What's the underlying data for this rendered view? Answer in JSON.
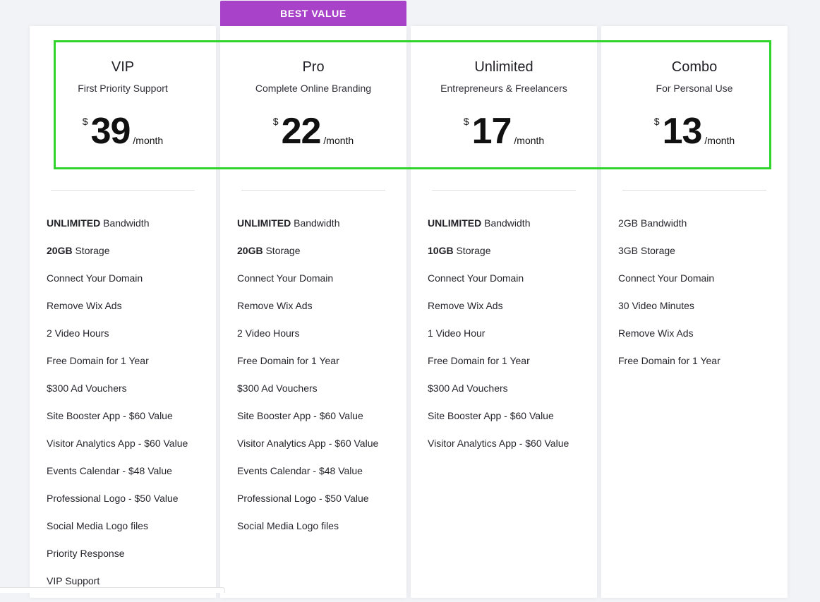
{
  "badge": {
    "label": "BEST VALUE",
    "color": "#a843c9"
  },
  "highlight_color": "#2fd52a",
  "plans": [
    {
      "name": "VIP",
      "tagline": "First Priority Support",
      "currency": "$",
      "price": "39",
      "period": "/month",
      "features": [
        {
          "bold": "UNLIMITED",
          "text": " Bandwidth"
        },
        {
          "bold": "20GB",
          "text": " Storage"
        },
        {
          "bold": "",
          "text": "Connect Your Domain"
        },
        {
          "bold": "",
          "text": "Remove Wix Ads"
        },
        {
          "bold": "",
          "text": "2 Video Hours"
        },
        {
          "bold": "",
          "text": "Free Domain for 1 Year"
        },
        {
          "bold": "",
          "text": "$300 Ad Vouchers"
        },
        {
          "bold": "",
          "text": "Site Booster App - $60 Value"
        },
        {
          "bold": "",
          "text": "Visitor Analytics App - $60 Value"
        },
        {
          "bold": "",
          "text": "Events Calendar - $48 Value"
        },
        {
          "bold": "",
          "text": "Professional Logo - $50 Value"
        },
        {
          "bold": "",
          "text": "Social Media Logo files"
        },
        {
          "bold": "",
          "text": "Priority Response"
        },
        {
          "bold": "",
          "text": "VIP Support"
        }
      ]
    },
    {
      "name": "Pro",
      "tagline": "Complete Online Branding",
      "currency": "$",
      "price": "22",
      "period": "/month",
      "features": [
        {
          "bold": "UNLIMITED",
          "text": " Bandwidth"
        },
        {
          "bold": "20GB",
          "text": " Storage"
        },
        {
          "bold": "",
          "text": "Connect Your Domain"
        },
        {
          "bold": "",
          "text": "Remove Wix Ads"
        },
        {
          "bold": "",
          "text": "2 Video Hours"
        },
        {
          "bold": "",
          "text": "Free Domain for 1 Year"
        },
        {
          "bold": "",
          "text": "$300 Ad Vouchers"
        },
        {
          "bold": "",
          "text": "Site Booster App - $60 Value"
        },
        {
          "bold": "",
          "text": "Visitor Analytics App - $60 Value"
        },
        {
          "bold": "",
          "text": "Events Calendar - $48 Value"
        },
        {
          "bold": "",
          "text": "Professional Logo - $50 Value"
        },
        {
          "bold": "",
          "text": "Social Media Logo files"
        }
      ]
    },
    {
      "name": "Unlimited",
      "tagline": "Entrepreneurs & Freelancers",
      "currency": "$",
      "price": "17",
      "period": "/month",
      "features": [
        {
          "bold": "UNLIMITED",
          "text": " Bandwidth"
        },
        {
          "bold": "10GB",
          "text": " Storage"
        },
        {
          "bold": "",
          "text": "Connect Your Domain"
        },
        {
          "bold": "",
          "text": "Remove Wix Ads"
        },
        {
          "bold": "",
          "text": "1 Video Hour"
        },
        {
          "bold": "",
          "text": "Free Domain for 1 Year"
        },
        {
          "bold": "",
          "text": "$300 Ad Vouchers"
        },
        {
          "bold": "",
          "text": "Site Booster App - $60 Value"
        },
        {
          "bold": "",
          "text": "Visitor Analytics App - $60 Value"
        }
      ]
    },
    {
      "name": "Combo",
      "tagline": "For Personal Use",
      "currency": "$",
      "price": "13",
      "period": "/month",
      "features": [
        {
          "bold": "",
          "text": "2GB Bandwidth"
        },
        {
          "bold": "",
          "text": "3GB Storage"
        },
        {
          "bold": "",
          "text": "Connect Your Domain"
        },
        {
          "bold": "",
          "text": "30 Video Minutes"
        },
        {
          "bold": "",
          "text": "Remove Wix Ads"
        },
        {
          "bold": "",
          "text": "Free Domain for 1 Year"
        }
      ]
    }
  ]
}
